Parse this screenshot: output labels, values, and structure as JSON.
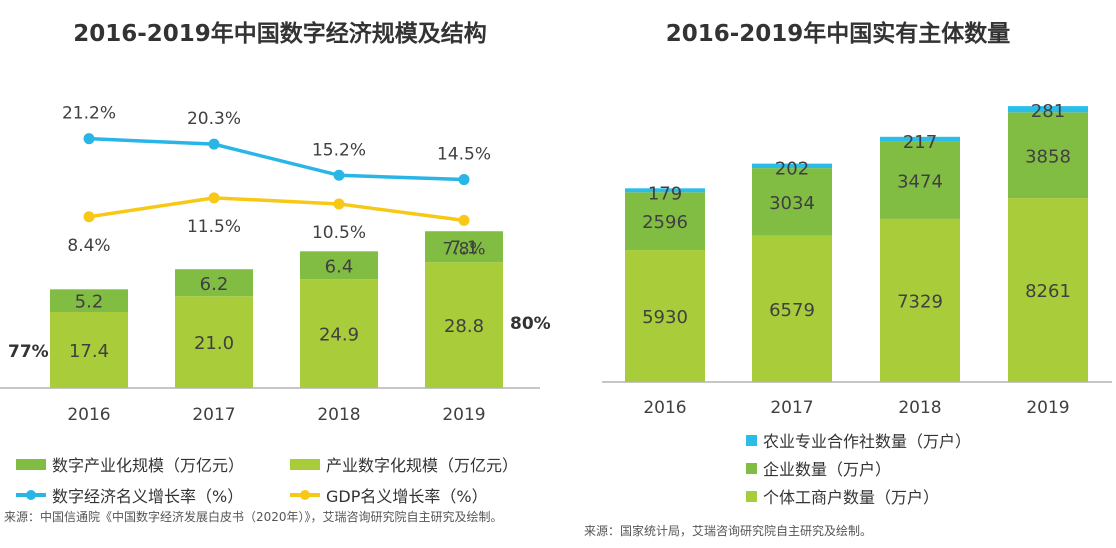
{
  "chart_data": [
    {
      "type": "bar",
      "title": "2016-2019年中国数字经济规模及结构",
      "categories": [
        "2016",
        "2017",
        "2018",
        "2019"
      ],
      "stacked": true,
      "series": [
        {
          "name": "产业数字化规模（万亿元）",
          "values": [
            17.4,
            21.0,
            24.9,
            28.8
          ],
          "labels": [
            "17.4",
            "21.0",
            "24.9",
            "28.8"
          ],
          "color": "#a9cc3a"
        },
        {
          "name": "数字产业化规模（万亿元）",
          "values": [
            5.2,
            6.2,
            6.4,
            7.1
          ],
          "labels": [
            "5.2",
            "6.2",
            "6.4",
            "7.1"
          ],
          "color": "#82bd43"
        }
      ],
      "line_series": [
        {
          "name": "数字经济名义增长率（%）",
          "values": [
            21.2,
            20.3,
            15.2,
            14.5
          ],
          "labels": [
            "21.2%",
            "20.3%",
            "15.2%",
            "14.5%"
          ],
          "color": "#29b6e6"
        },
        {
          "name": "GDP名义增长率（%）",
          "values": [
            8.4,
            11.5,
            10.5,
            7.8
          ],
          "labels": [
            "8.4%",
            "11.5%",
            "10.5%",
            "7.8%"
          ],
          "color": "#f8c817"
        }
      ],
      "annotations": [
        {
          "text": "77%",
          "side": "left"
        },
        {
          "text": "80%",
          "side": "right"
        }
      ],
      "source": "来源：中国信通院《中国数字经济发展白皮书（2020年）》，艾瑞咨询研究院自主研究及绘制。"
    },
    {
      "type": "bar",
      "title": "2016-2019年中国实有主体数量",
      "categories": [
        "2016",
        "2017",
        "2018",
        "2019"
      ],
      "stacked": true,
      "series": [
        {
          "name": "个体工商户数量（万户）",
          "values": [
            5930,
            6579,
            7329,
            8261
          ],
          "color": "#a9cc3a"
        },
        {
          "name": "企业数量（万户）",
          "values": [
            2596,
            3034,
            3474,
            3858
          ],
          "color": "#82bd43"
        },
        {
          "name": "农业专业合作社数量（万户）",
          "values": [
            179,
            202,
            217,
            281
          ],
          "color": "#29bde8"
        }
      ],
      "source": "来源：国家统计局，艾瑞咨询研究院自主研究及绘制。"
    }
  ]
}
